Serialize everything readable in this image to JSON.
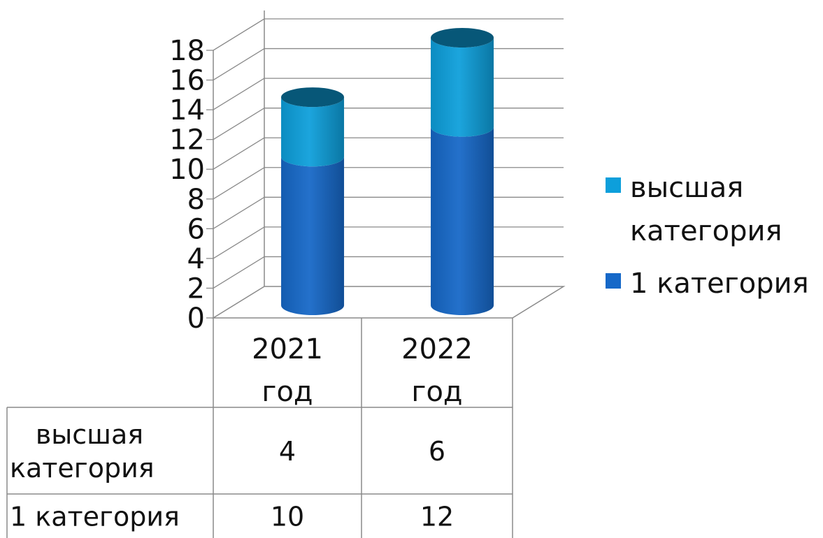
{
  "chart_data": {
    "type": "bar",
    "stacked": true,
    "three_d": true,
    "bar_shape": "cylinder",
    "categories": [
      "2021 год",
      "2022 год"
    ],
    "category_lines": [
      [
        "2021",
        "год"
      ],
      [
        "2022",
        "год"
      ]
    ],
    "series": [
      {
        "name": "1 категория",
        "values": [
          10,
          12
        ],
        "color": "#1668C8",
        "lines": [
          "1 категория"
        ]
      },
      {
        "name": "высшая категория",
        "values": [
          4,
          6
        ],
        "color": "#0D9FDB",
        "lines": [
          "высшая",
          "категория"
        ]
      }
    ],
    "yticks": [
      "0",
      "2",
      "4",
      "6",
      "8",
      "10",
      "12",
      "14",
      "16",
      "18"
    ],
    "ylim": [
      0,
      18
    ],
    "grid": true,
    "legend": "right",
    "data_table": true
  }
}
